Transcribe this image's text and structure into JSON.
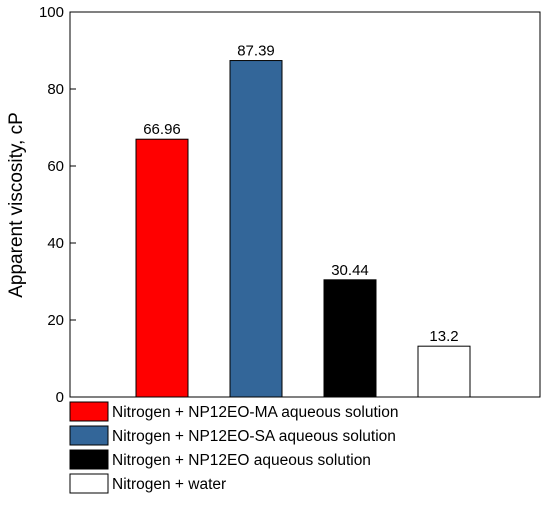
{
  "chart_data": {
    "type": "bar",
    "title": "",
    "xlabel": "",
    "ylabel": "Apparent viscosity, cP",
    "ylim": [
      0,
      100
    ],
    "yticks": [
      0,
      20,
      40,
      60,
      80,
      100
    ],
    "grid": false,
    "legend_position": "bottom",
    "categories": [
      "Nitrogen + NP12EO-MA aqueous solution",
      "Nitrogen + NP12EO-SA aqueous solution",
      "Nitrogen + NP12EO aqueous solution",
      "Nitrogen + water"
    ],
    "values": [
      66.96,
      87.39,
      30.44,
      13.2
    ],
    "value_labels": [
      "66.96",
      "87.39",
      "30.44",
      "13.2"
    ],
    "colors": [
      "#ff0000",
      "#336699",
      "#000000",
      "#ffffff"
    ]
  }
}
